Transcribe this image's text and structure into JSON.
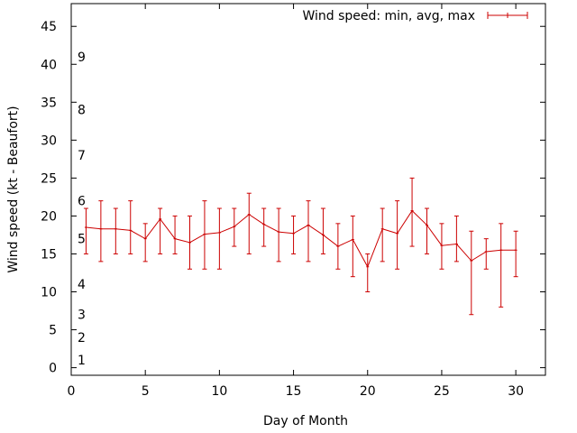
{
  "chart_data": {
    "type": "line",
    "xlabel": "Day of Month",
    "ylabel": "Wind speed (kt - Beaufort)",
    "xlim": [
      0,
      32
    ],
    "ylim": [
      -1,
      48
    ],
    "xticks": [
      0,
      5,
      10,
      15,
      20,
      25,
      30
    ],
    "yticks": [
      0,
      5,
      10,
      15,
      20,
      25,
      30,
      35,
      40,
      45
    ],
    "grid": false,
    "legend": {
      "position": "top-right"
    },
    "beaufort_labels": [
      {
        "label": "1",
        "y": 1
      },
      {
        "label": "2",
        "y": 4
      },
      {
        "label": "3",
        "y": 7
      },
      {
        "label": "4",
        "y": 11
      },
      {
        "label": "5",
        "y": 17
      },
      {
        "label": "6",
        "y": 22
      },
      {
        "label": "7",
        "y": 28
      },
      {
        "label": "8",
        "y": 34
      },
      {
        "label": "9",
        "y": 41
      }
    ],
    "series": [
      {
        "name": "Wind speed: min, avg, max",
        "color": "#cc0000",
        "x": [
          1,
          2,
          3,
          4,
          5,
          6,
          7,
          8,
          9,
          10,
          11,
          12,
          13,
          14,
          15,
          16,
          17,
          18,
          19,
          20,
          21,
          22,
          23,
          24,
          25,
          26,
          27,
          28,
          29,
          30
        ],
        "avg": [
          18.5,
          18.3,
          18.3,
          18.1,
          17.0,
          19.6,
          17.0,
          16.5,
          17.6,
          17.8,
          18.6,
          20.2,
          18.9,
          17.9,
          17.7,
          18.8,
          17.5,
          16.0,
          16.9,
          13.3,
          18.3,
          17.7,
          20.7,
          18.8,
          16.1,
          16.3,
          14.1,
          15.3,
          15.5,
          15.5
        ],
        "min": [
          15,
          14,
          15,
          15,
          14,
          15,
          15,
          13,
          13,
          13,
          16,
          15,
          16,
          14,
          15,
          14,
          15,
          13,
          12,
          10,
          14,
          13,
          16,
          15,
          13,
          14,
          7,
          13,
          8,
          12
        ],
        "max": [
          21,
          22,
          21,
          22,
          19,
          21,
          20,
          20,
          22,
          21,
          21,
          23,
          21,
          21,
          20,
          22,
          21,
          19,
          20,
          15,
          21,
          22,
          25,
          21,
          19,
          20,
          18,
          17,
          19,
          18
        ]
      }
    ]
  }
}
